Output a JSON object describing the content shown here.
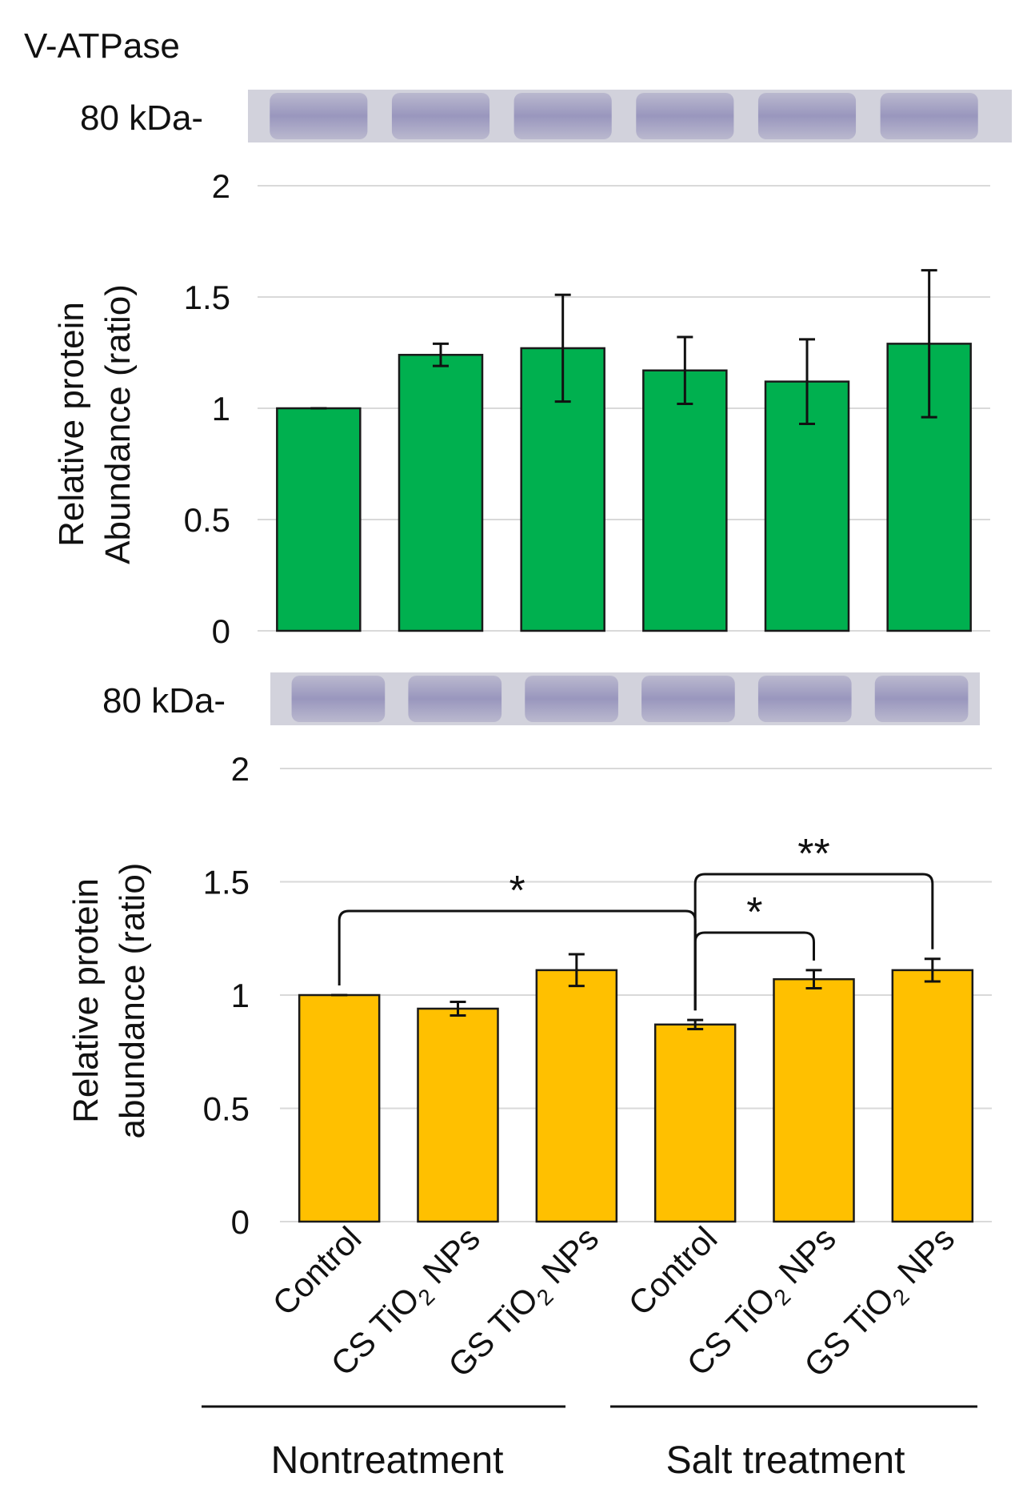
{
  "figure": {
    "protein_title": "V-ATPase",
    "top_blot_marker": "80 kDa-",
    "bottom_blot_marker": "80 kDa-",
    "group_labels": [
      "Nontreatment",
      "Salt treatment"
    ],
    "colors": {
      "top_bar": "#00b04f",
      "bottom_bar": "#ffc000",
      "blot_band": "#8f8cb8",
      "blot_bg": "#d2d2dc"
    }
  },
  "chart_data": [
    {
      "type": "bar",
      "title": "V-ATPase",
      "ylabel": [
        "Relative protein",
        "Abundance (ratio)"
      ],
      "ylim": [
        0,
        2
      ],
      "yticks": [
        "0",
        "0.5",
        "1",
        "1.5",
        "2"
      ],
      "grid": true,
      "categories": [
        "Control",
        "CS TiO2 NPs",
        "GS TiO2 NPs",
        "Control",
        "CS TiO2 NPs",
        "GS TiO2 NPs"
      ],
      "values": [
        1.0,
        1.24,
        1.27,
        1.17,
        1.12,
        1.29
      ],
      "errors": [
        0.0,
        0.05,
        0.24,
        0.15,
        0.19,
        0.33
      ],
      "annotations": []
    },
    {
      "type": "bar",
      "ylabel": [
        "Relative protein",
        "abundance (ratio)"
      ],
      "ylim": [
        0,
        2
      ],
      "yticks": [
        "0",
        "0.5",
        "1",
        "1.5",
        "2"
      ],
      "grid": true,
      "categories": [
        "Control",
        "CS TiO2 NPs",
        "GS TiO2 NPs",
        "Control",
        "CS TiO2 NPs",
        "GS TiO2 NPs"
      ],
      "values": [
        1.0,
        0.94,
        1.11,
        0.87,
        1.07,
        1.11
      ],
      "errors": [
        0.0,
        0.03,
        0.07,
        0.02,
        0.04,
        0.05
      ],
      "annotations": [
        {
          "from": 0,
          "to": 3,
          "label": "*"
        },
        {
          "from": 3,
          "to": 4,
          "label": "*"
        },
        {
          "from": 3,
          "to": 5,
          "label": "**"
        }
      ]
    }
  ]
}
